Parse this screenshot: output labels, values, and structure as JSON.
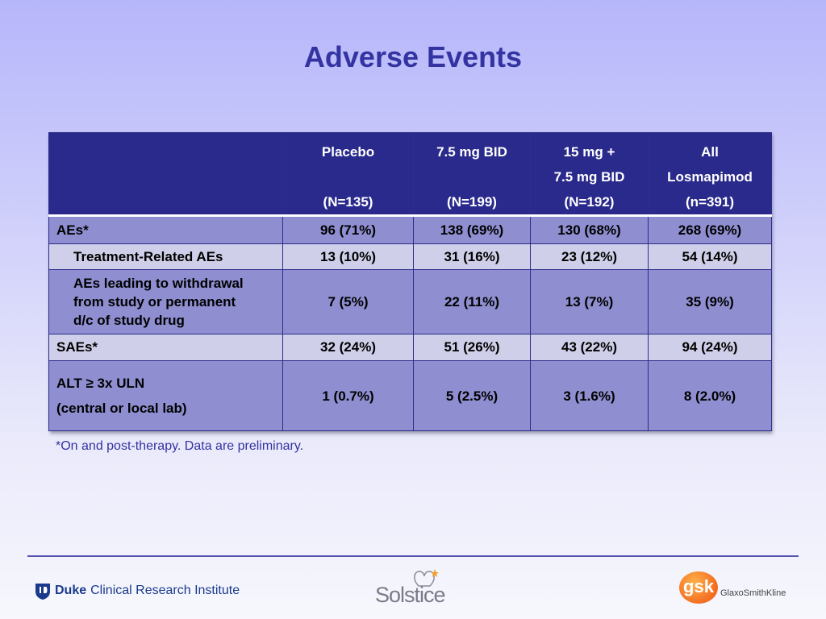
{
  "slide": {
    "title": "Adverse Events",
    "footnote": "*On and post-therapy. Data are preliminary."
  },
  "table": {
    "headers": [
      {
        "line1": "",
        "line2": "",
        "line3": ""
      },
      {
        "line1": "Placebo",
        "line2": "",
        "line3": "(N=135)"
      },
      {
        "line1": "7.5 mg BID",
        "line2": "",
        "line3": "(N=199)"
      },
      {
        "line1": "15 mg +",
        "line2": "7.5 mg BID",
        "line3": "(N=192)"
      },
      {
        "line1": "All",
        "line2": "Losmapimod",
        "line3": "(n=391)"
      }
    ],
    "rows": [
      {
        "label_line1": "AEs*",
        "label_line2": "",
        "label_line3": "",
        "cells": [
          "96 (71%)",
          "138 (69%)",
          "130 (68%)",
          "268 (69%)"
        ]
      },
      {
        "label_line1": "Treatment-Related AEs",
        "label_line2": "",
        "label_line3": "",
        "cells": [
          "13 (10%)",
          "31 (16%)",
          "23 (12%)",
          "54 (14%)"
        ]
      },
      {
        "label_line1": "AEs leading to withdrawal",
        "label_line2": "from study or permanent",
        "label_line3": "d/c of study drug",
        "cells": [
          "7 (5%)",
          "22 (11%)",
          "13 (7%)",
          "35 (9%)"
        ]
      },
      {
        "label_line1": "SAEs*",
        "label_line2": "",
        "label_line3": "",
        "cells": [
          "32 (24%)",
          "51 (26%)",
          "43 (22%)",
          "94 (24%)"
        ]
      },
      {
        "label_line1": "ALT ≥ 3x ULN",
        "label_line2": "(central or local lab)",
        "label_line3": "",
        "cells": [
          "1 (0.7%)",
          "5 (2.5%)",
          "3 (1.6%)",
          "8 (2.0%)"
        ]
      }
    ]
  },
  "logos": {
    "duke_bold": "Duke",
    "duke_rest": "Clinical Research Institute",
    "solstice": "Solstice",
    "gsk_mark": "gsk",
    "gsk_name": "GlaxoSmithKline"
  },
  "colors": {
    "title": "#3333a1",
    "header_bg": "#2a2a8c",
    "row_light": "#cfcfe9",
    "row_dark": "#8e8ed0",
    "gsk_orange": "#f36c21"
  }
}
